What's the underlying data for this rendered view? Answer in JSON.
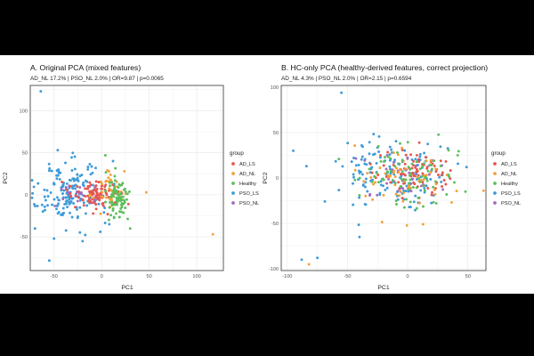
{
  "colors": {
    "AD_LS": "#E8554E",
    "AD_NL": "#F2A13B",
    "Healthy": "#5CBF5A",
    "PSO_LS": "#3E9BD9",
    "PSO_NL": "#A569BD",
    "panel_bg": "#FFFFFF",
    "grid": "#EBEBEB",
    "border": "#333333"
  },
  "chart_data": [
    {
      "type": "scatter",
      "title": "A. Original PCA (mixed features)",
      "subtitle": "AD_NL 17.2% | PSO_NL 2.0% | OR=9.87 | p=0.0065",
      "xlabel": "PC1",
      "ylabel": "PC2",
      "xlim": [
        -75,
        128
      ],
      "ylim": [
        -90,
        130
      ],
      "xticks": [
        -50,
        0,
        50,
        100
      ],
      "yticks": [
        -50,
        0,
        50,
        100
      ],
      "grid": true,
      "legend": {
        "title": "group",
        "position": "right",
        "entries": [
          "AD_LS",
          "AD_NL",
          "Healthy",
          "PSO_LS",
          "PSO_NL"
        ]
      },
      "series": [
        {
          "name": "PSO_LS",
          "center": [
            -35,
            2
          ],
          "spread": [
            18,
            18
          ],
          "n": 170,
          "extra": [
            [
              -64,
              123
            ],
            [
              -55,
              -78
            ],
            [
              -70,
              -40
            ],
            [
              -50,
              -52
            ],
            [
              -20,
              -55
            ]
          ]
        },
        {
          "name": "PSO_NL",
          "center": [
            -22,
            0
          ],
          "spread": [
            12,
            8
          ],
          "n": 25,
          "extra": []
        },
        {
          "name": "AD_LS",
          "center": [
            -5,
            1
          ],
          "spread": [
            12,
            8
          ],
          "n": 100,
          "extra": []
        },
        {
          "name": "AD_NL",
          "center": [
            8,
            5
          ],
          "spread": [
            9,
            12
          ],
          "n": 35,
          "extra": [
            [
              117,
              -47
            ],
            [
              24,
              28
            ],
            [
              47,
              3
            ]
          ]
        },
        {
          "name": "Healthy",
          "center": [
            17,
            -3
          ],
          "spread": [
            5,
            14
          ],
          "n": 85,
          "extra": [
            [
              4,
              47
            ],
            [
              30,
              -40
            ]
          ]
        }
      ]
    },
    {
      "type": "scatter",
      "title": "B. HC-only PCA (healthy-derived features, correct projection)",
      "subtitle": "AD_NL 4.3% | PSO_NL 2.0% | OR=2.15 | p=0.6594",
      "xlabel": "PC1",
      "ylabel": "PC2",
      "xlim": [
        -105,
        65
      ],
      "ylim": [
        -102,
        102
      ],
      "xticks": [
        -100,
        -50,
        0,
        50
      ],
      "yticks": [
        -100,
        -50,
        0,
        50,
        100
      ],
      "grid": true,
      "legend": {
        "title": "group",
        "position": "right",
        "entries": [
          "AD_LS",
          "AD_NL",
          "Healthy",
          "PSO_LS",
          "PSO_NL"
        ]
      },
      "series": [
        {
          "name": "PSO_LS",
          "center": [
            -15,
            3
          ],
          "spread": [
            22,
            18
          ],
          "n": 150,
          "extra": [
            [
              -55,
              94
            ],
            [
              -88,
              -90
            ],
            [
              -75,
              -88
            ],
            [
              -40,
              -65
            ],
            [
              -95,
              30
            ]
          ]
        },
        {
          "name": "AD_LS",
          "center": [
            5,
            5
          ],
          "spread": [
            18,
            14
          ],
          "n": 80,
          "extra": []
        },
        {
          "name": "PSO_NL",
          "center": [
            -5,
            3
          ],
          "spread": [
            18,
            14
          ],
          "n": 35,
          "extra": []
        },
        {
          "name": "AD_NL",
          "center": [
            -2,
            -2
          ],
          "spread": [
            22,
            20
          ],
          "n": 60,
          "extra": [
            [
              -82,
              -95
            ]
          ]
        },
        {
          "name": "Healthy",
          "center": [
            2,
            0
          ],
          "spread": [
            20,
            18
          ],
          "n": 80,
          "extra": [
            [
              48,
              -15
            ]
          ]
        }
      ]
    }
  ]
}
